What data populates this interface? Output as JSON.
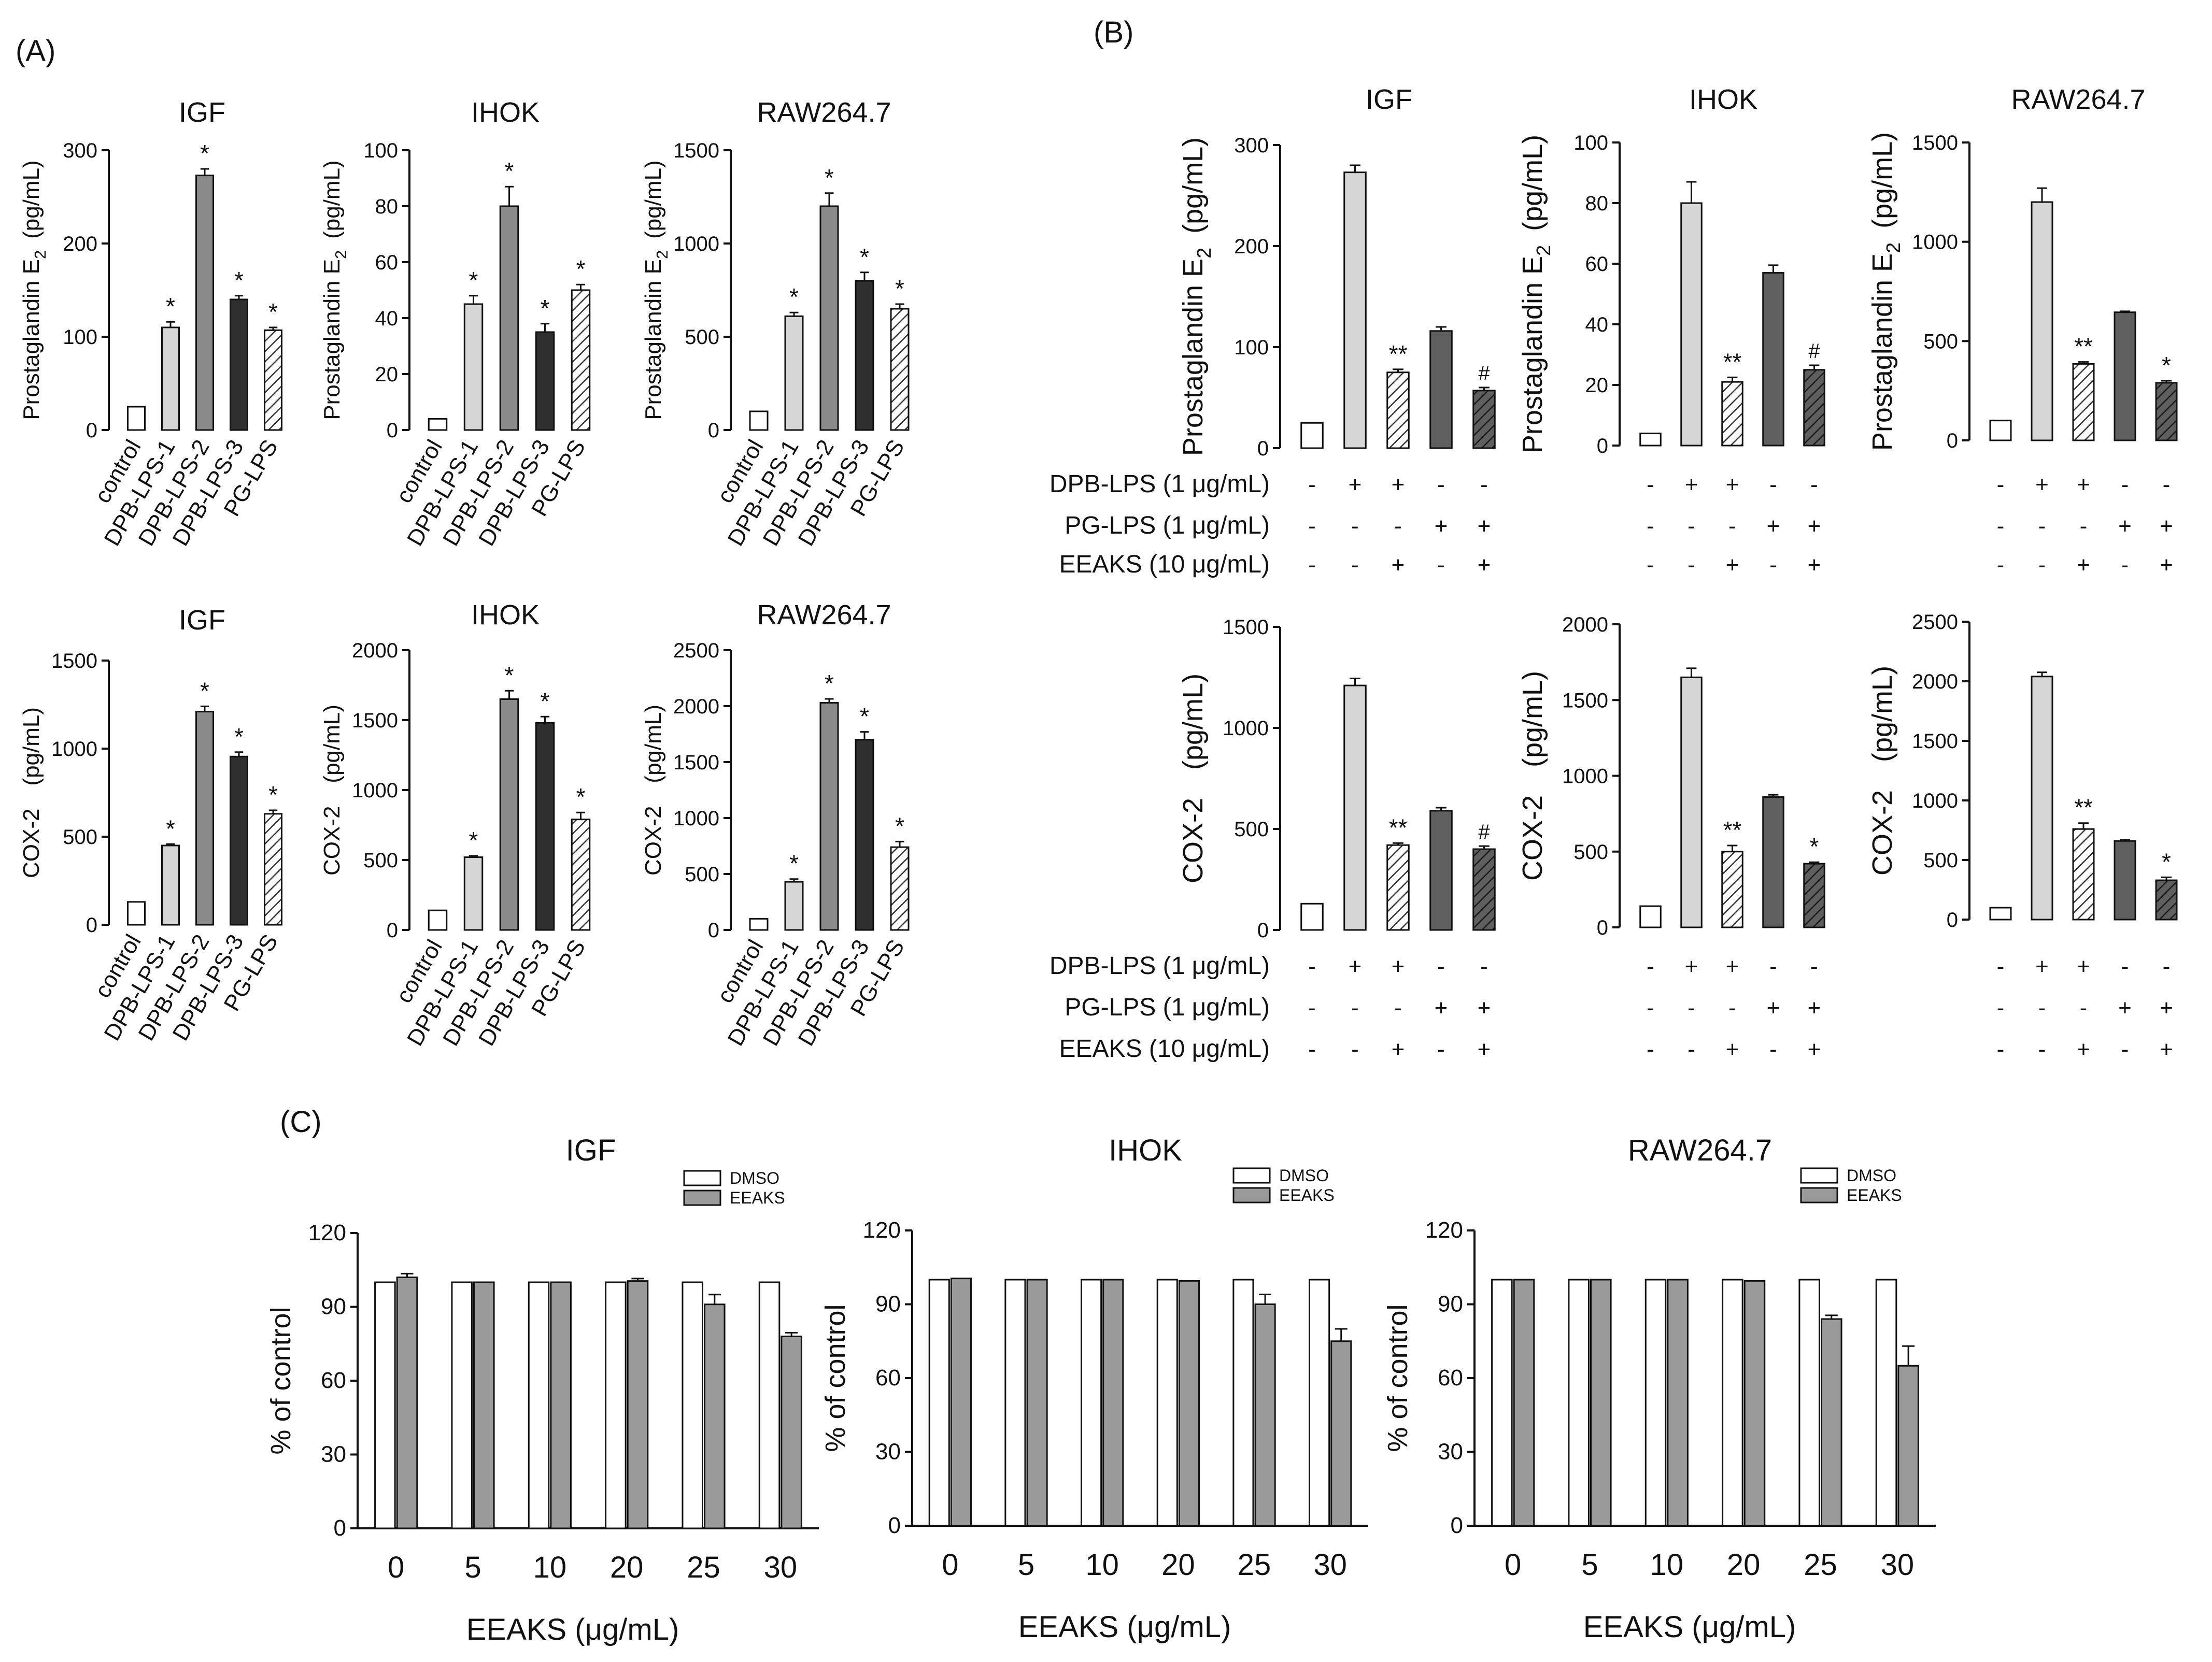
{
  "panel_labels": {
    "A": "(A)",
    "B": "(B)",
    "C": "(C)"
  },
  "colors": {
    "white_bar": "#ffffff",
    "light_grey": "#d6d6d6",
    "mid_grey": "#8a8a8a",
    "dark_grey": "#2f2f2f",
    "dark_medium": "#5f5f5f",
    "dmso": "#ffffff",
    "eeaks": "#9a9a9a",
    "axis": "#111111"
  },
  "treatment_table": {
    "labels": [
      "DPB-LPS (1 μg/mL)",
      "PG-LPS (1 μg/mL)",
      "EEAKS (10 μg/mL)"
    ],
    "rows": [
      [
        "-",
        "+",
        "+",
        "-",
        "-"
      ],
      [
        "-",
        "-",
        "-",
        "+",
        "+"
      ],
      [
        "-",
        "-",
        "+",
        "-",
        "+"
      ]
    ]
  },
  "chart_data": [
    {
      "id": "A-PGE2-IGF",
      "panel": "A",
      "type": "bar",
      "title": "IGF",
      "ylabel": "Prostaglandin E₂ (pg/mL)",
      "ylabel_main": "Prostaglandin E",
      "ylabel_sub": "2",
      "ylabel_unit": "(pg/mL)",
      "categories": [
        "control",
        "DPB-LPS-1",
        "DPB-LPS-2",
        "DPB-LPS-3",
        "PG-LPS"
      ],
      "values": [
        25,
        110,
        273,
        140,
        107
      ],
      "errors": [
        0,
        6,
        7,
        4,
        3
      ],
      "annotations": [
        "",
        "*",
        "*",
        "*",
        "*"
      ],
      "ylim": [
        0,
        300
      ],
      "yticks": [
        0,
        100,
        200,
        300
      ]
    },
    {
      "id": "A-PGE2-IHOK",
      "panel": "A",
      "type": "bar",
      "title": "IHOK",
      "ylabel": "Prostaglandin E₂ (pg/mL)",
      "ylabel_main": "Prostaglandin E",
      "ylabel_sub": "2",
      "ylabel_unit": "(pg/mL)",
      "categories": [
        "control",
        "DPB-LPS-1",
        "DPB-LPS-2",
        "DPB-LPS-3",
        "PG-LPS"
      ],
      "values": [
        4,
        45,
        80,
        35,
        50
      ],
      "errors": [
        0,
        3,
        7,
        3,
        2
      ],
      "annotations": [
        "",
        "*",
        "*",
        "*",
        "*"
      ],
      "ylim": [
        0,
        100
      ],
      "yticks": [
        0,
        20,
        40,
        60,
        80,
        100
      ]
    },
    {
      "id": "A-PGE2-RAW",
      "panel": "A",
      "type": "bar",
      "title": "RAW264.7",
      "ylabel": "Prostaglandin E₂ (pg/mL)",
      "ylabel_main": "Prostaglandin E",
      "ylabel_sub": "2",
      "ylabel_unit": "(pg/mL)",
      "categories": [
        "control",
        "DPB-LPS-1",
        "DPB-LPS-2",
        "DPB-LPS-3",
        "PG-LPS"
      ],
      "values": [
        100,
        610,
        1200,
        800,
        650
      ],
      "errors": [
        0,
        20,
        70,
        45,
        25
      ],
      "annotations": [
        "",
        "*",
        "*",
        "*",
        "*"
      ],
      "ylim": [
        0,
        1500
      ],
      "yticks": [
        0,
        500,
        1000,
        1500
      ]
    },
    {
      "id": "A-COX2-IGF",
      "panel": "A",
      "type": "bar",
      "title": "IGF",
      "ylabel": "COX-2 (pg/mL)",
      "ylabel_main": "COX-2",
      "ylabel_unit": "(pg/mL)",
      "categories": [
        "control",
        "DPB-LPS-1",
        "DPB-LPS-2",
        "DPB-LPS-3",
        "PG-LPS"
      ],
      "values": [
        130,
        450,
        1210,
        955,
        630
      ],
      "errors": [
        0,
        8,
        30,
        25,
        20
      ],
      "annotations": [
        "",
        "*",
        "*",
        "*",
        "*"
      ],
      "ylim": [
        0,
        1500
      ],
      "yticks": [
        0,
        500,
        1000,
        1500
      ]
    },
    {
      "id": "A-COX2-IHOK",
      "panel": "A",
      "type": "bar",
      "title": "IHOK",
      "ylabel": "COX-2 (pg/mL)",
      "ylabel_main": "COX-2",
      "ylabel_unit": "(pg/mL)",
      "categories": [
        "control",
        "DPB-LPS-1",
        "DPB-LPS-2",
        "DPB-LPS-3",
        "PG-LPS"
      ],
      "values": [
        140,
        520,
        1650,
        1480,
        790
      ],
      "errors": [
        0,
        10,
        60,
        45,
        50
      ],
      "annotations": [
        "",
        "*",
        "*",
        "*",
        "*"
      ],
      "ylim": [
        0,
        2000
      ],
      "yticks": [
        0,
        500,
        1000,
        1500,
        2000
      ]
    },
    {
      "id": "A-COX2-RAW",
      "panel": "A",
      "type": "bar",
      "title": "RAW264.7",
      "ylabel": "COX-2 (pg/mL)",
      "ylabel_main": "COX-2",
      "ylabel_unit": "(pg/mL)",
      "categories": [
        "control",
        "DPB-LPS-1",
        "DPB-LPS-2",
        "DPB-LPS-3",
        "PG-LPS"
      ],
      "values": [
        100,
        430,
        2030,
        1700,
        740
      ],
      "errors": [
        0,
        25,
        35,
        70,
        50
      ],
      "annotations": [
        "",
        "*",
        "*",
        "*",
        "*"
      ],
      "ylim": [
        0,
        2500
      ],
      "yticks": [
        0,
        500,
        1000,
        1500,
        2000,
        2500
      ]
    },
    {
      "id": "B-PGE2-IGF",
      "panel": "B",
      "type": "bar",
      "title": "IGF",
      "ylabel": "Prostaglandin E₂ (pg/mL)",
      "ylabel_main": "Prostaglandin E",
      "ylabel_sub": "2",
      "ylabel_unit": "(pg/mL)",
      "values": [
        25,
        273,
        75,
        116,
        57
      ],
      "errors": [
        0,
        7,
        3,
        4,
        3
      ],
      "annotations": [
        "",
        "",
        "**",
        "",
        "#"
      ],
      "ylim": [
        0,
        300
      ],
      "yticks": [
        0,
        100,
        200,
        300
      ]
    },
    {
      "id": "B-PGE2-IHOK",
      "panel": "B",
      "type": "bar",
      "title": "IHOK",
      "ylabel": "Prostaglandin E₂ (pg/mL)",
      "ylabel_main": "Prostaglandin E",
      "ylabel_sub": "2",
      "ylabel_unit": "(pg/mL)",
      "values": [
        4,
        80,
        21,
        57,
        25
      ],
      "errors": [
        0,
        7,
        1.5,
        2.5,
        1.5
      ],
      "annotations": [
        "",
        "",
        "**",
        "",
        "#"
      ],
      "ylim": [
        0,
        100
      ],
      "yticks": [
        0,
        20,
        40,
        60,
        80,
        100
      ]
    },
    {
      "id": "B-PGE2-RAW",
      "panel": "B",
      "type": "bar",
      "title": "RAW264.7",
      "ylabel": "Prostaglandin E₂ (pg/mL)",
      "ylabel_main": "Prostaglandin E",
      "ylabel_sub": "2",
      "ylabel_unit": "(pg/mL)",
      "values": [
        100,
        1200,
        385,
        645,
        290
      ],
      "errors": [
        0,
        70,
        10,
        5,
        10
      ],
      "annotations": [
        "",
        "",
        "**",
        "",
        "*"
      ],
      "ylim": [
        0,
        1500
      ],
      "yticks": [
        0,
        500,
        1000,
        1500
      ]
    },
    {
      "id": "B-COX2-IGF",
      "panel": "B",
      "type": "bar",
      "title": "",
      "ylabel": "COX-2 (pg/mL)",
      "ylabel_main": "COX-2",
      "ylabel_unit": "(pg/mL)",
      "values": [
        130,
        1210,
        420,
        590,
        400
      ],
      "errors": [
        0,
        35,
        10,
        15,
        15
      ],
      "annotations": [
        "",
        "",
        "**",
        "",
        "#"
      ],
      "ylim": [
        0,
        1500
      ],
      "yticks": [
        0,
        500,
        1000,
        1500
      ]
    },
    {
      "id": "B-COX2-IHOK",
      "panel": "B",
      "type": "bar",
      "title": "",
      "ylabel": "COX-2 (pg/mL)",
      "ylabel_main": "COX-2",
      "ylabel_unit": "(pg/mL)",
      "values": [
        140,
        1650,
        500,
        860,
        420
      ],
      "errors": [
        0,
        60,
        40,
        15,
        10
      ],
      "annotations": [
        "",
        "",
        "**",
        "",
        "*"
      ],
      "ylim": [
        0,
        2000
      ],
      "yticks": [
        0,
        500,
        1000,
        1500,
        2000
      ]
    },
    {
      "id": "B-COX2-RAW",
      "panel": "B",
      "type": "bar",
      "title": "",
      "ylabel": "COX-2 (pg/mL)",
      "ylabel_main": "COX-2",
      "ylabel_unit": "(pg/mL)",
      "values": [
        100,
        2040,
        760,
        660,
        330
      ],
      "errors": [
        0,
        35,
        50,
        10,
        25
      ],
      "annotations": [
        "",
        "",
        "**",
        "",
        "*"
      ],
      "ylim": [
        0,
        2500
      ],
      "yticks": [
        0,
        500,
        1000,
        1500,
        2000,
        2500
      ]
    },
    {
      "id": "C-IGF",
      "panel": "C",
      "type": "bar",
      "title": "IGF",
      "xlabel": "EEAKS (μg/mL)",
      "ylabel": "% of control",
      "categories": [
        "0",
        "5",
        "10",
        "20",
        "25",
        "30"
      ],
      "series": [
        {
          "name": "DMSO",
          "values": [
            100,
            100,
            100,
            100,
            100,
            100
          ],
          "errors": [
            0,
            0,
            0,
            0,
            0,
            0
          ]
        },
        {
          "name": "EEAKS",
          "values": [
            102,
            100,
            100,
            100.5,
            91,
            78
          ],
          "errors": [
            1.5,
            0,
            0,
            1,
            4,
            1.5
          ]
        }
      ],
      "ylim": [
        0,
        120
      ],
      "yticks": [
        0,
        30,
        60,
        90,
        120
      ]
    },
    {
      "id": "C-IHOK",
      "panel": "C",
      "type": "bar",
      "title": "IHOK",
      "xlabel": "EEAKS (μg/mL)",
      "ylabel": "% of control",
      "categories": [
        "0",
        "5",
        "10",
        "20",
        "25",
        "30"
      ],
      "series": [
        {
          "name": "DMSO",
          "values": [
            100,
            100,
            100,
            100,
            100,
            100
          ],
          "errors": [
            0,
            0,
            0,
            0,
            0,
            0
          ]
        },
        {
          "name": "EEAKS",
          "values": [
            100.5,
            100,
            100,
            99.5,
            90,
            75
          ],
          "errors": [
            0,
            0,
            0,
            0,
            4,
            5
          ]
        }
      ],
      "ylim": [
        0,
        120
      ],
      "yticks": [
        0,
        30,
        60,
        90,
        120
      ]
    },
    {
      "id": "C-RAW",
      "panel": "C",
      "type": "bar",
      "title": "RAW264.7",
      "xlabel": "EEAKS (μg/mL)",
      "ylabel": "% of control",
      "categories": [
        "0",
        "5",
        "10",
        "20",
        "25",
        "30"
      ],
      "series": [
        {
          "name": "DMSO",
          "values": [
            100,
            100,
            100,
            100,
            100,
            100
          ],
          "errors": [
            0,
            0,
            0,
            0,
            0,
            0
          ]
        },
        {
          "name": "EEAKS",
          "values": [
            100,
            100,
            100,
            99.5,
            84,
            65
          ],
          "errors": [
            0,
            0,
            0,
            0,
            1.5,
            8
          ]
        }
      ],
      "ylim": [
        0,
        120
      ],
      "yticks": [
        0,
        30,
        60,
        90,
        120
      ]
    }
  ]
}
